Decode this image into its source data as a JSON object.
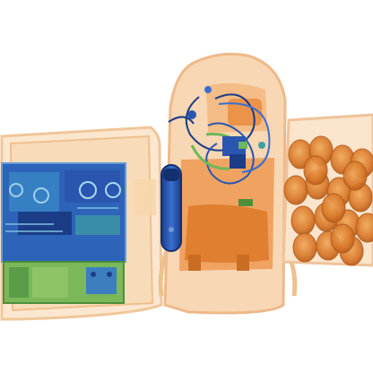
{
  "scene": {
    "kind": "x-ray baggage scan",
    "background": "#ffffff",
    "objects": [
      {
        "name": "laptop-bag",
        "contents": [
          "laptop",
          "battery",
          "charger"
        ]
      },
      {
        "name": "backpack",
        "contents": [
          "cables",
          "electronics",
          "flashlight",
          "keys"
        ]
      },
      {
        "name": "box-of-round-items",
        "count": 19
      }
    ],
    "palette": {
      "organic": "#e8883a",
      "light_organic": "#f3c99a",
      "metal": "#2a56b0",
      "dense_metal": "#1b3c86",
      "mixed": "#3fa0a0",
      "green_mixed": "#6cb85a"
    }
  }
}
